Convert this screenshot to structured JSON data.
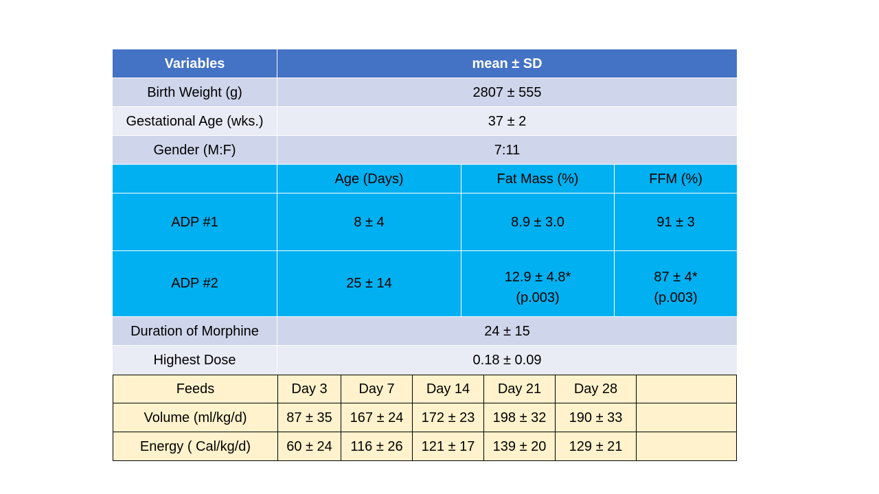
{
  "header": {
    "variables": "Variables",
    "mean_sd": "mean ± SD"
  },
  "demographics": [
    {
      "label": "Birth Weight (g)",
      "value": "2807 ± 555"
    },
    {
      "label": "Gestational Age (wks.)",
      "value": "37 ± 2"
    },
    {
      "label": "Gender (M:F)",
      "value": "7:11"
    }
  ],
  "adp": {
    "columns": [
      "",
      "Age (Days)",
      "Fat Mass (%)",
      "FFM (%)"
    ],
    "rows": [
      {
        "label": "ADP #1",
        "age": "8 ± 4",
        "fat": "8.9 ± 3.0",
        "fat_p": "",
        "ffm": "91 ± 3",
        "ffm_p": ""
      },
      {
        "label": "ADP #2",
        "age": "25 ± 14",
        "fat": "12.9 ± 4.8*",
        "fat_p": "(p.003)",
        "ffm": "87 ± 4*",
        "ffm_p": "(p.003)"
      }
    ]
  },
  "morphine": [
    {
      "label": "Duration of Morphine",
      "value": "24 ± 15"
    },
    {
      "label": "Highest Dose",
      "value": "0.18 ± 0.09"
    }
  ],
  "feeds": {
    "header": [
      "Feeds",
      "Day 3",
      "Day 7",
      "Day 14",
      "Day 21",
      "Day 28",
      ""
    ],
    "rows": [
      [
        "Volume (ml/kg/d)",
        "87 ± 35",
        "167 ± 24",
        "172 ± 23",
        "198 ± 32",
        "190 ± 33",
        ""
      ],
      [
        "Energy ( Cal/kg/d)",
        "60 ± 24",
        "116 ± 26",
        "121 ± 17",
        "139 ± 20",
        "129 ± 21",
        ""
      ]
    ]
  },
  "colors": {
    "header": "#4472c4",
    "lavender_dark": "#cfd5ea",
    "lavender_light": "#e9ebf5",
    "adp_blue": "#00b0f0",
    "feeds_cream": "#fff2cc"
  }
}
